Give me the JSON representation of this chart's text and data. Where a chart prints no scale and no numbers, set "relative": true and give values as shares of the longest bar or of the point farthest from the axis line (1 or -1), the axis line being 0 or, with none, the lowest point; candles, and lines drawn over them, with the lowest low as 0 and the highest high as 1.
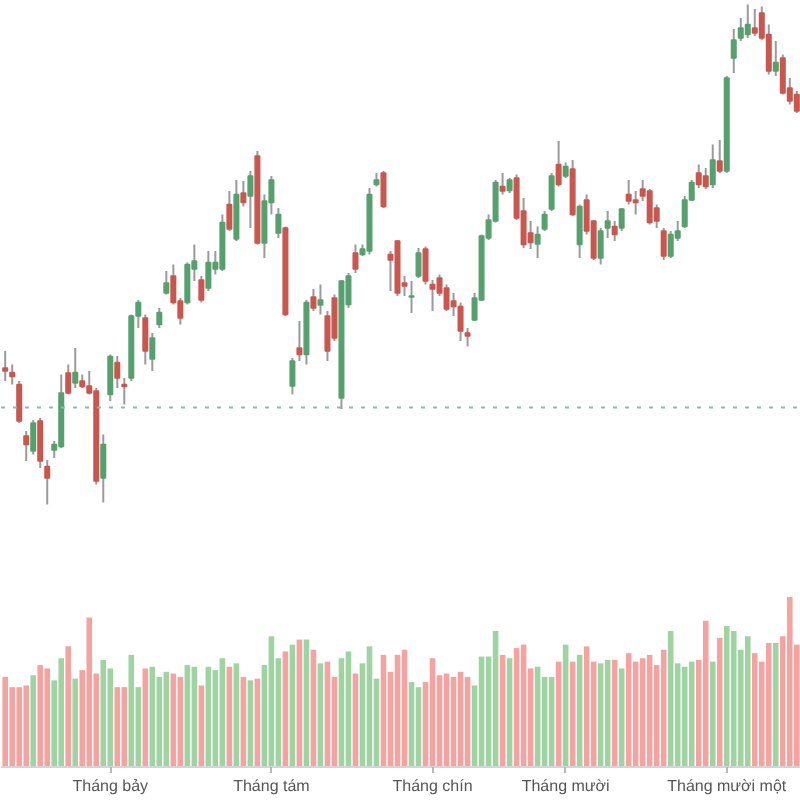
{
  "chart_data": [
    {
      "type": "candlestick",
      "relative": true,
      "categories": [
        null,
        null,
        null,
        null,
        null,
        null,
        null,
        null,
        null,
        null,
        null,
        null,
        null,
        null,
        null,
        null,
        null,
        null,
        null,
        null,
        null,
        null,
        null,
        null,
        null,
        null,
        null,
        null,
        null,
        null,
        null,
        null,
        null,
        null,
        null,
        null,
        null,
        null,
        null,
        null,
        null,
        null,
        null,
        null,
        null,
        null,
        null,
        null,
        null,
        null,
        null,
        null,
        null,
        null,
        null,
        null,
        null,
        null,
        null,
        null,
        null,
        null,
        null,
        null,
        null,
        null,
        null,
        null,
        null,
        null,
        null,
        null,
        null,
        null,
        null,
        null,
        null,
        null,
        null,
        null,
        null,
        null,
        null,
        null,
        null,
        null,
        null,
        null,
        null,
        null,
        null,
        null,
        null,
        null,
        null,
        null,
        null,
        null,
        null,
        null,
        null,
        null,
        null,
        null,
        null,
        null,
        null,
        null,
        null,
        null,
        null,
        null,
        null,
        null
      ],
      "ohlc": [
        [
          0.273,
          0.307,
          0.247,
          0.267
        ],
        [
          0.264,
          0.28,
          0.24,
          0.256
        ],
        [
          0.24,
          0.247,
          0.163,
          0.167
        ],
        [
          0.137,
          0.147,
          0.087,
          0.12
        ],
        [
          0.107,
          0.169,
          0.1,
          0.163
        ],
        [
          0.167,
          0.173,
          0.073,
          0.087
        ],
        [
          0.076,
          0.089,
          0.0,
          0.053
        ],
        [
          0.109,
          0.127,
          0.093,
          0.12
        ],
        [
          0.116,
          0.26,
          0.113,
          0.223
        ],
        [
          0.263,
          0.28,
          0.22,
          0.223
        ],
        [
          0.243,
          0.313,
          0.233,
          0.264
        ],
        [
          0.247,
          0.26,
          0.233,
          0.236
        ],
        [
          0.237,
          0.267,
          0.22,
          0.223
        ],
        [
          0.227,
          0.233,
          0.04,
          0.047
        ],
        [
          0.053,
          0.14,
          0.004,
          0.12
        ],
        [
          0.22,
          0.3,
          0.207,
          0.296
        ],
        [
          0.284,
          0.297,
          0.233,
          0.253
        ],
        [
          0.24,
          0.253,
          0.2,
          0.236
        ],
        [
          0.253,
          0.38,
          0.247,
          0.377
        ],
        [
          0.377,
          0.409,
          0.353,
          0.404
        ],
        [
          0.373,
          0.38,
          0.28,
          0.307
        ],
        [
          0.291,
          0.343,
          0.267,
          0.333
        ],
        [
          0.36,
          0.393,
          0.353,
          0.384
        ],
        [
          0.423,
          0.467,
          0.42,
          0.443
        ],
        [
          0.457,
          0.48,
          0.4,
          0.404
        ],
        [
          0.407,
          0.413,
          0.36,
          0.373
        ],
        [
          0.404,
          0.484,
          0.4,
          0.48
        ],
        [
          0.471,
          0.52,
          0.447,
          0.487
        ],
        [
          0.449,
          0.457,
          0.404,
          0.409
        ],
        [
          0.433,
          0.507,
          0.427,
          0.484
        ],
        [
          0.471,
          0.507,
          0.46,
          0.484
        ],
        [
          0.471,
          0.58,
          0.467,
          0.564
        ],
        [
          0.6,
          0.627,
          0.547,
          0.551
        ],
        [
          0.531,
          0.649,
          0.527,
          0.62
        ],
        [
          0.623,
          0.647,
          0.596,
          0.604
        ],
        [
          0.617,
          0.667,
          0.553,
          0.657
        ],
        [
          0.697,
          0.707,
          0.52,
          0.523
        ],
        [
          0.523,
          0.62,
          0.493,
          0.607
        ],
        [
          0.604,
          0.657,
          0.58,
          0.649
        ],
        [
          0.543,
          0.593,
          0.533,
          0.58
        ],
        [
          0.553,
          0.556,
          0.377,
          0.38
        ],
        [
          0.237,
          0.293,
          0.22,
          0.287
        ],
        [
          0.313,
          0.367,
          0.287,
          0.3
        ],
        [
          0.3,
          0.409,
          0.28,
          0.404
        ],
        [
          0.415,
          0.431,
          0.387,
          0.393
        ],
        [
          0.399,
          0.44,
          0.38,
          0.409
        ],
        [
          0.377,
          0.387,
          0.287,
          0.307
        ],
        [
          0.413,
          0.42,
          0.327,
          0.333
        ],
        [
          0.213,
          0.449,
          0.191,
          0.447
        ],
        [
          0.4,
          0.463,
          0.393,
          0.457
        ],
        [
          0.503,
          0.52,
          0.463,
          0.471
        ],
        [
          0.5,
          0.52,
          0.497,
          0.511
        ],
        [
          0.507,
          0.633,
          0.5,
          0.62
        ],
        [
          0.64,
          0.663,
          0.636,
          0.649
        ],
        [
          0.663,
          0.667,
          0.593,
          0.596
        ],
        [
          0.5,
          0.507,
          0.427,
          0.489
        ],
        [
          0.527,
          0.529,
          0.417,
          0.423
        ],
        [
          0.443,
          0.457,
          0.417,
          0.437
        ],
        [
          0.415,
          0.447,
          0.383,
          0.417
        ],
        [
          0.457,
          0.513,
          0.453,
          0.503
        ],
        [
          0.511,
          0.516,
          0.44,
          0.447
        ],
        [
          0.44,
          0.449,
          0.387,
          0.431
        ],
        [
          0.453,
          0.46,
          0.417,
          0.423
        ],
        [
          0.433,
          0.44,
          0.387,
          0.391
        ],
        [
          0.407,
          0.423,
          0.377,
          0.396
        ],
        [
          0.396,
          0.404,
          0.327,
          0.347
        ],
        [
          0.343,
          0.353,
          0.316,
          0.337
        ],
        [
          0.369,
          0.423,
          0.367,
          0.413
        ],
        [
          0.409,
          0.54,
          0.407,
          0.537
        ],
        [
          0.533,
          0.58,
          0.529,
          0.569
        ],
        [
          0.567,
          0.649,
          0.564,
          0.644
        ],
        [
          0.636,
          0.663,
          0.62,
          0.627
        ],
        [
          0.628,
          0.653,
          0.623,
          0.649
        ],
        [
          0.653,
          0.66,
          0.569,
          0.573
        ],
        [
          0.587,
          0.613,
          0.513,
          0.52
        ],
        [
          0.543,
          0.567,
          0.511,
          0.524
        ],
        [
          0.521,
          0.556,
          0.493,
          0.54
        ],
        [
          0.551,
          0.587,
          0.547,
          0.58
        ],
        [
          0.591,
          0.663,
          0.587,
          0.657
        ],
        [
          0.68,
          0.727,
          0.636,
          0.64
        ],
        [
          0.657,
          0.684,
          0.653,
          0.676
        ],
        [
          0.671,
          0.689,
          0.577,
          0.58
        ],
        [
          0.52,
          0.6,
          0.493,
          0.596
        ],
        [
          0.609,
          0.62,
          0.54,
          0.547
        ],
        [
          0.567,
          0.569,
          0.489,
          0.493
        ],
        [
          0.493,
          0.553,
          0.48,
          0.547
        ],
        [
          0.553,
          0.587,
          0.533,
          0.567
        ],
        [
          0.556,
          0.567,
          0.527,
          0.54
        ],
        [
          0.553,
          0.593,
          0.547,
          0.591
        ],
        [
          0.62,
          0.649,
          0.6,
          0.607
        ],
        [
          0.609,
          0.627,
          0.58,
          0.604
        ],
        [
          0.631,
          0.649,
          0.607,
          0.617
        ],
        [
          0.627,
          0.631,
          0.56,
          0.564
        ],
        [
          0.593,
          0.6,
          0.553,
          0.567
        ],
        [
          0.547,
          0.553,
          0.489,
          0.497
        ],
        [
          0.497,
          0.547,
          0.493,
          0.54
        ],
        [
          0.533,
          0.567,
          0.527,
          0.547
        ],
        [
          0.556,
          0.617,
          0.553,
          0.609
        ],
        [
          0.609,
          0.649,
          0.607,
          0.644
        ],
        [
          0.663,
          0.68,
          0.633,
          0.64
        ],
        [
          0.657,
          0.673,
          0.631,
          0.636
        ],
        [
          0.64,
          0.72,
          0.633,
          0.689
        ],
        [
          0.687,
          0.729,
          0.663,
          0.667
        ],
        [
          0.667,
          0.857,
          0.663,
          0.853
        ],
        [
          0.893,
          0.951,
          0.863,
          0.929
        ],
        [
          0.933,
          0.973,
          0.927,
          0.953
        ],
        [
          0.94,
          1.0,
          0.933,
          0.96
        ],
        [
          0.953,
          0.991,
          0.937,
          0.943
        ],
        [
          0.983,
          0.996,
          0.929,
          0.933
        ],
        [
          0.94,
          0.96,
          0.86,
          0.867
        ],
        [
          0.867,
          0.927,
          0.857,
          0.884
        ],
        [
          0.893,
          0.9,
          0.82,
          0.823
        ],
        [
          0.833,
          0.853,
          0.8,
          0.807
        ],
        [
          0.82,
          0.827,
          0.783,
          0.787
        ]
      ],
      "colors": [
        "#c8574f",
        "#c8574f",
        "#c8574f",
        "#c8574f",
        "#56a06e",
        "#c8574f",
        "#c8574f",
        "#56a06e",
        "#56a06e",
        "#c8574f",
        "#56a06e",
        "#c8574f",
        "#c8574f",
        "#c8574f",
        "#56a06e",
        "#56a06e",
        "#c8574f",
        "#c8574f",
        "#56a06e",
        "#56a06e",
        "#c8574f",
        "#56a06e",
        "#56a06e",
        "#56a06e",
        "#c8574f",
        "#c8574f",
        "#56a06e",
        "#56a06e",
        "#c8574f",
        "#56a06e",
        "#56a06e",
        "#56a06e",
        "#c8574f",
        "#56a06e",
        "#c8574f",
        "#56a06e",
        "#c8574f",
        "#56a06e",
        "#56a06e",
        "#56a06e",
        "#c8574f",
        "#56a06e",
        "#c8574f",
        "#56a06e",
        "#c8574f",
        "#56a06e",
        "#c8574f",
        "#c8574f",
        "#56a06e",
        "#56a06e",
        "#c8574f",
        "#56a06e",
        "#56a06e",
        "#56a06e",
        "#c8574f",
        "#c8574f",
        "#c8574f",
        "#c8574f",
        "#56a06e",
        "#56a06e",
        "#c8574f",
        "#c8574f",
        "#c8574f",
        "#c8574f",
        "#c8574f",
        "#c8574f",
        "#c8574f",
        "#56a06e",
        "#56a06e",
        "#56a06e",
        "#56a06e",
        "#c8574f",
        "#56a06e",
        "#c8574f",
        "#c8574f",
        "#c8574f",
        "#56a06e",
        "#56a06e",
        "#56a06e",
        "#c8574f",
        "#56a06e",
        "#c8574f",
        "#56a06e",
        "#c8574f",
        "#c8574f",
        "#56a06e",
        "#56a06e",
        "#c8574f",
        "#56a06e",
        "#c8574f",
        "#c8574f",
        "#c8574f",
        "#c8574f",
        "#c8574f",
        "#c8574f",
        "#56a06e",
        "#56a06e",
        "#56a06e",
        "#56a06e",
        "#c8574f",
        "#c8574f",
        "#56a06e",
        "#c8574f",
        "#56a06e",
        "#56a06e",
        "#56a06e",
        "#56a06e",
        "#c8574f",
        "#c8574f",
        "#c8574f",
        "#56a06e",
        "#c8574f",
        "#c8574f",
        "#c8574f"
      ],
      "ref_lines": [
        {
          "axis": "y",
          "value": 0.194,
          "color": "#8fb8b0",
          "line_style": "dotted"
        }
      ]
    },
    {
      "type": "bar",
      "relative": true,
      "categories": [
        null,
        null,
        null,
        null,
        null,
        null,
        null,
        null,
        null,
        null,
        null,
        null,
        null,
        null,
        null,
        "Tháng bảy",
        null,
        null,
        null,
        null,
        null,
        null,
        null,
        null,
        null,
        null,
        null,
        null,
        null,
        null,
        null,
        null,
        null,
        null,
        null,
        null,
        null,
        null,
        "Tháng tám",
        null,
        null,
        null,
        null,
        null,
        null,
        null,
        null,
        null,
        null,
        null,
        null,
        null,
        null,
        null,
        null,
        null,
        null,
        null,
        null,
        null,
        null,
        "Tháng chín",
        null,
        null,
        null,
        null,
        null,
        null,
        null,
        null,
        null,
        null,
        null,
        null,
        null,
        null,
        null,
        null,
        null,
        null,
        "Tháng mười",
        null,
        null,
        null,
        null,
        null,
        null,
        null,
        null,
        null,
        null,
        null,
        null,
        null,
        null,
        null,
        null,
        null,
        null,
        null,
        null,
        null,
        null,
        "Tháng mười một",
        null,
        null,
        null,
        null,
        null,
        null,
        null,
        null,
        null,
        null
      ],
      "values": [
        0.53,
        0.47,
        0.47,
        0.48,
        0.54,
        0.6,
        0.58,
        0.51,
        0.64,
        0.71,
        0.52,
        0.57,
        0.88,
        0.55,
        0.63,
        0.58,
        0.47,
        0.47,
        0.66,
        0.47,
        0.58,
        0.59,
        0.53,
        0.56,
        0.55,
        0.53,
        0.6,
        0.59,
        0.48,
        0.59,
        0.57,
        0.64,
        0.59,
        0.61,
        0.53,
        0.51,
        0.52,
        0.6,
        0.77,
        0.64,
        0.68,
        0.72,
        0.75,
        0.75,
        0.69,
        0.61,
        0.62,
        0.53,
        0.64,
        0.68,
        0.55,
        0.61,
        0.71,
        0.52,
        0.66,
        0.56,
        0.66,
        0.69,
        0.5,
        0.47,
        0.5,
        0.64,
        0.54,
        0.55,
        0.53,
        0.56,
        0.53,
        0.48,
        0.65,
        0.65,
        0.8,
        0.66,
        0.64,
        0.7,
        0.72,
        0.58,
        0.59,
        0.53,
        0.53,
        0.62,
        0.72,
        0.62,
        0.66,
        0.71,
        0.62,
        0.61,
        0.63,
        0.63,
        0.58,
        0.67,
        0.62,
        0.64,
        0.66,
        0.6,
        0.69,
        0.8,
        0.61,
        0.59,
        0.62,
        0.63,
        0.86,
        0.62,
        0.76,
        0.83,
        0.8,
        0.69,
        0.77,
        0.67,
        0.62,
        0.73,
        0.73,
        0.77,
        1,
        0.72
      ],
      "colors": [
        "#f4a3a0",
        "#f4a3a0",
        "#f4a3a0",
        "#f4a3a0",
        "#9fd3a2",
        "#f4a3a0",
        "#f4a3a0",
        "#9fd3a2",
        "#9fd3a2",
        "#f4a3a0",
        "#9fd3a2",
        "#f4a3a0",
        "#f4a3a0",
        "#f4a3a0",
        "#9fd3a2",
        "#9fd3a2",
        "#f4a3a0",
        "#f4a3a0",
        "#9fd3a2",
        "#9fd3a2",
        "#f4a3a0",
        "#9fd3a2",
        "#9fd3a2",
        "#9fd3a2",
        "#f4a3a0",
        "#f4a3a0",
        "#9fd3a2",
        "#9fd3a2",
        "#f4a3a0",
        "#9fd3a2",
        "#9fd3a2",
        "#9fd3a2",
        "#f4a3a0",
        "#9fd3a2",
        "#f4a3a0",
        "#9fd3a2",
        "#f4a3a0",
        "#9fd3a2",
        "#9fd3a2",
        "#9fd3a2",
        "#f4a3a0",
        "#9fd3a2",
        "#f4a3a0",
        "#9fd3a2",
        "#f4a3a0",
        "#9fd3a2",
        "#f4a3a0",
        "#f4a3a0",
        "#9fd3a2",
        "#9fd3a2",
        "#f4a3a0",
        "#9fd3a2",
        "#9fd3a2",
        "#9fd3a2",
        "#f4a3a0",
        "#f4a3a0",
        "#f4a3a0",
        "#f4a3a0",
        "#9fd3a2",
        "#9fd3a2",
        "#f4a3a0",
        "#f4a3a0",
        "#f4a3a0",
        "#f4a3a0",
        "#f4a3a0",
        "#f4a3a0",
        "#f4a3a0",
        "#9fd3a2",
        "#9fd3a2",
        "#9fd3a2",
        "#9fd3a2",
        "#f4a3a0",
        "#9fd3a2",
        "#f4a3a0",
        "#f4a3a0",
        "#f4a3a0",
        "#9fd3a2",
        "#9fd3a2",
        "#9fd3a2",
        "#f4a3a0",
        "#9fd3a2",
        "#f4a3a0",
        "#9fd3a2",
        "#f4a3a0",
        "#f4a3a0",
        "#9fd3a2",
        "#9fd3a2",
        "#f4a3a0",
        "#9fd3a2",
        "#f4a3a0",
        "#f4a3a0",
        "#f4a3a0",
        "#f4a3a0",
        "#f4a3a0",
        "#f4a3a0",
        "#9fd3a2",
        "#9fd3a2",
        "#9fd3a2",
        "#9fd3a2",
        "#f4a3a0",
        "#f4a3a0",
        "#9fd3a2",
        "#f4a3a0",
        "#9fd3a2",
        "#9fd3a2",
        "#9fd3a2",
        "#9fd3a2",
        "#f4a3a0",
        "#f4a3a0",
        "#f4a3a0",
        "#9fd3a2",
        "#f4a3a0",
        "#f4a3a0",
        "#f4a3a0"
      ]
    }
  ]
}
